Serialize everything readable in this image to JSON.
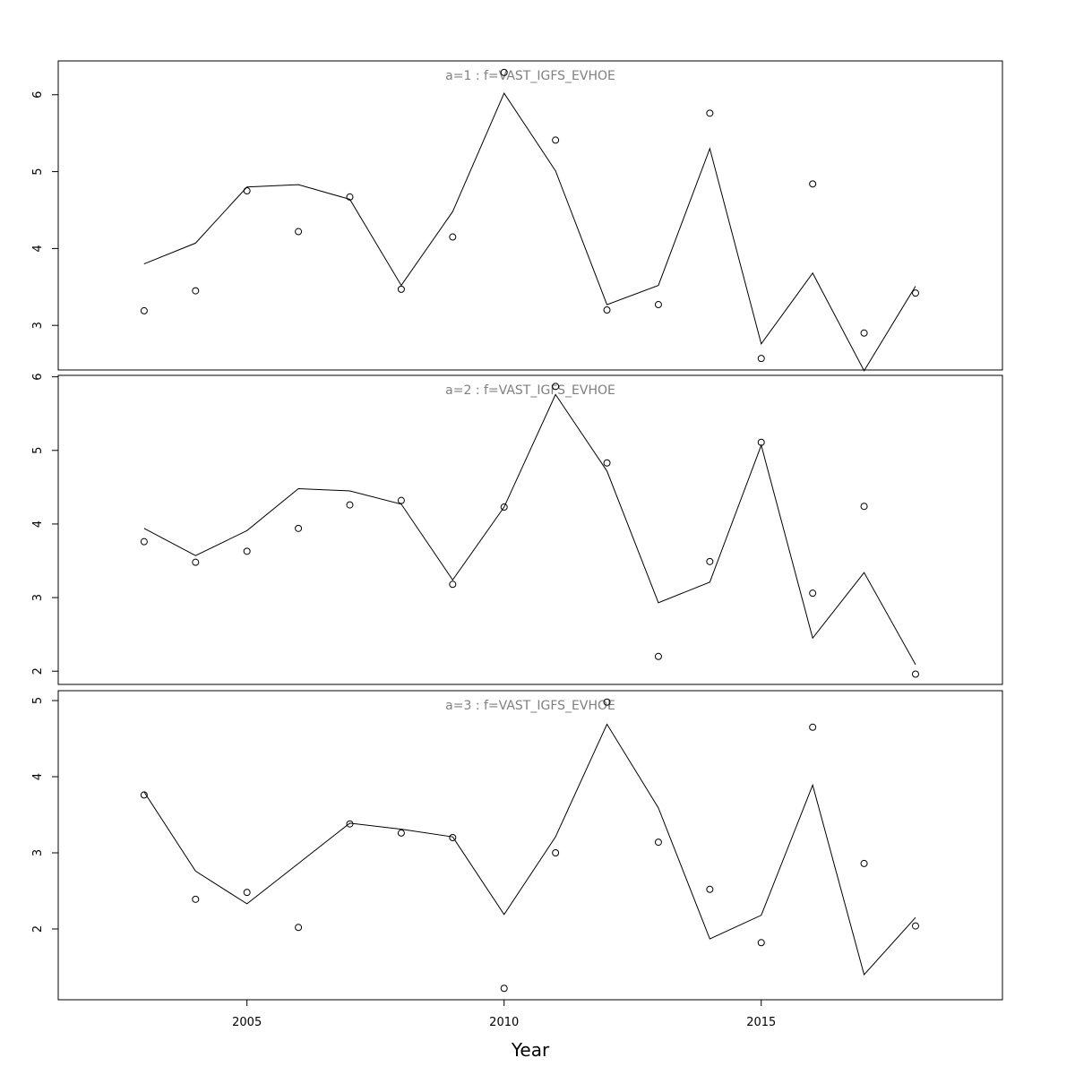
{
  "chart_data": [
    {
      "type": "line",
      "title": "a=1 : f=VAST_IGFS_EVHOE",
      "x": [
        2003,
        2004,
        2005,
        2006,
        2007,
        2008,
        2009,
        2010,
        2011,
        2012,
        2013,
        2014,
        2015,
        2016,
        2017,
        2018
      ],
      "series": [
        {
          "style": "points",
          "color": "#000000",
          "values": [
            3.19,
            3.45,
            4.75,
            4.22,
            4.67,
            3.47,
            4.15,
            6.29,
            5.41,
            3.2,
            3.27,
            5.76,
            2.57,
            4.84,
            2.9,
            3.42
          ]
        },
        {
          "style": "line",
          "color": "#000000",
          "values": [
            3.8,
            4.07,
            4.8,
            4.83,
            4.64,
            3.52,
            4.48,
            6.02,
            5.01,
            3.27,
            3.52,
            5.3,
            2.76,
            3.68,
            2.41,
            3.51
          ]
        }
      ],
      "xlim": [
        2001.33,
        2019.69
      ],
      "ylim": [
        2.42,
        6.44
      ],
      "yticks": [
        3,
        4,
        5,
        6
      ]
    },
    {
      "type": "line",
      "title": "a=2 : f=VAST_IGFS_EVHOE",
      "x": [
        2003,
        2004,
        2005,
        2006,
        2007,
        2008,
        2009,
        2010,
        2011,
        2012,
        2013,
        2014,
        2015,
        2016,
        2017,
        2018
      ],
      "series": [
        {
          "style": "points",
          "color": "#000000",
          "values": [
            3.76,
            3.48,
            3.63,
            3.94,
            4.26,
            4.32,
            3.18,
            4.23,
            5.87,
            4.83,
            2.2,
            3.49,
            5.11,
            3.06,
            4.24,
            1.96
          ]
        },
        {
          "style": "line",
          "color": "#000000",
          "values": [
            3.94,
            3.57,
            3.91,
            4.48,
            4.45,
            4.27,
            3.24,
            4.23,
            5.76,
            4.72,
            2.93,
            3.21,
            5.07,
            2.45,
            3.34,
            2.09
          ]
        }
      ],
      "xlim": [
        2001.33,
        2019.69
      ],
      "ylim": [
        1.82,
        6.02
      ],
      "yticks": [
        2,
        3,
        4,
        5,
        6
      ]
    },
    {
      "type": "line",
      "title": "a=3 : f=VAST_IGFS_EVHOE",
      "xlabel": "Year",
      "x": [
        2003,
        2004,
        2005,
        2006,
        2007,
        2008,
        2009,
        2010,
        2011,
        2012,
        2013,
        2014,
        2015,
        2016,
        2017,
        2018
      ],
      "series": [
        {
          "style": "points",
          "color": "#000000",
          "values": [
            3.76,
            2.39,
            2.48,
            2.02,
            3.38,
            3.26,
            3.2,
            1.22,
            3.0,
            4.98,
            3.14,
            2.52,
            1.82,
            4.65,
            2.86,
            2.04
          ]
        },
        {
          "style": "line",
          "color": "#000000",
          "values": [
            3.8,
            2.76,
            2.33,
            2.86,
            3.39,
            3.31,
            3.21,
            2.19,
            3.21,
            4.69,
            3.59,
            1.87,
            2.18,
            3.89,
            1.4,
            2.15
          ]
        }
      ],
      "xlim": [
        2001.33,
        2019.69
      ],
      "ylim": [
        1.07,
        5.13
      ],
      "yticks": [
        2,
        3,
        4,
        5
      ],
      "xticks": [
        2005,
        2010,
        2015
      ]
    }
  ]
}
